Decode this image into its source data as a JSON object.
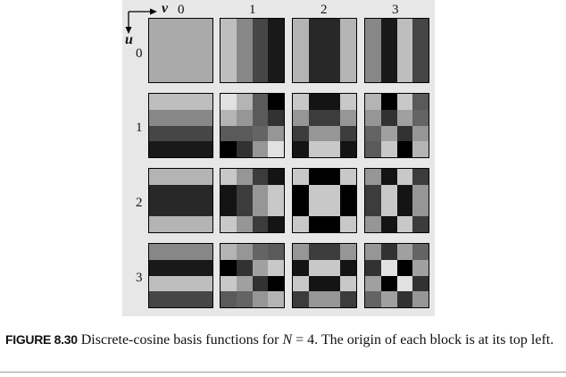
{
  "figure": {
    "axis_v": "v",
    "axis_u": "u",
    "col_labels": [
      "0",
      "1",
      "2",
      "3"
    ],
    "row_labels": [
      "0",
      "1",
      "2",
      "3"
    ],
    "blocks": [
      [
        {
          "cells": [
            [
              170,
              170,
              170,
              170
            ],
            [
              170,
              170,
              170,
              170
            ],
            [
              170,
              170,
              170,
              170
            ],
            [
              170,
              170,
              170,
              170
            ]
          ]
        },
        {
          "cells": [
            [
              190,
              135,
              70,
              25
            ],
            [
              190,
              135,
              70,
              25
            ],
            [
              190,
              135,
              70,
              25
            ],
            [
              190,
              135,
              70,
              25
            ]
          ]
        },
        {
          "cells": [
            [
              180,
              40,
              40,
              180
            ],
            [
              180,
              40,
              40,
              180
            ],
            [
              180,
              40,
              40,
              180
            ],
            [
              180,
              40,
              40,
              180
            ]
          ]
        },
        {
          "cells": [
            [
              135,
              25,
              190,
              70
            ],
            [
              135,
              25,
              190,
              70
            ],
            [
              135,
              25,
              190,
              70
            ],
            [
              135,
              25,
              190,
              70
            ]
          ]
        }
      ],
      [
        {
          "cells": [
            [
              190,
              190,
              190,
              190
            ],
            [
              135,
              135,
              135,
              135
            ],
            [
              70,
              70,
              70,
              70
            ],
            [
              25,
              25,
              25,
              25
            ]
          ]
        },
        {
          "cells": [
            [
              225,
              180,
              90,
              0
            ],
            [
              180,
              150,
              90,
              50
            ],
            [
              90,
              90,
              100,
              150
            ],
            [
              0,
              50,
              150,
              225
            ]
          ]
        },
        {
          "cells": [
            [
              200,
              20,
              20,
              200
            ],
            [
              150,
              60,
              60,
              150
            ],
            [
              60,
              150,
              150,
              60
            ],
            [
              20,
              200,
              200,
              20
            ]
          ]
        },
        {
          "cells": [
            [
              180,
              0,
              200,
              90
            ],
            [
              150,
              50,
              160,
              100
            ],
            [
              100,
              160,
              50,
              150
            ],
            [
              90,
              200,
              0,
              180
            ]
          ]
        }
      ],
      [
        {
          "cells": [
            [
              180,
              180,
              180,
              180
            ],
            [
              40,
              40,
              40,
              40
            ],
            [
              40,
              40,
              40,
              40
            ],
            [
              180,
              180,
              180,
              180
            ]
          ]
        },
        {
          "cells": [
            [
              200,
              150,
              60,
              20
            ],
            [
              20,
              60,
              150,
              200
            ],
            [
              20,
              60,
              150,
              200
            ],
            [
              200,
              150,
              60,
              20
            ]
          ]
        },
        {
          "cells": [
            [
              200,
              0,
              0,
              200
            ],
            [
              0,
              200,
              200,
              0
            ],
            [
              0,
              200,
              200,
              0
            ],
            [
              200,
              0,
              0,
              200
            ]
          ]
        },
        {
          "cells": [
            [
              150,
              20,
              200,
              60
            ],
            [
              60,
              200,
              20,
              150
            ],
            [
              60,
              200,
              20,
              150
            ],
            [
              150,
              20,
              200,
              60
            ]
          ]
        }
      ],
      [
        {
          "cells": [
            [
              135,
              135,
              135,
              135
            ],
            [
              25,
              25,
              25,
              25
            ],
            [
              190,
              190,
              190,
              190
            ],
            [
              70,
              70,
              70,
              70
            ]
          ]
        },
        {
          "cells": [
            [
              180,
              150,
              100,
              90
            ],
            [
              0,
              50,
              160,
              200
            ],
            [
              200,
              160,
              50,
              0
            ],
            [
              90,
              100,
              150,
              180
            ]
          ]
        },
        {
          "cells": [
            [
              150,
              60,
              60,
              150
            ],
            [
              20,
              200,
              200,
              20
            ],
            [
              200,
              20,
              20,
              200
            ],
            [
              60,
              150,
              150,
              60
            ]
          ]
        },
        {
          "cells": [
            [
              150,
              50,
              160,
              100
            ],
            [
              50,
              225,
              0,
              160
            ],
            [
              160,
              0,
              225,
              50
            ],
            [
              100,
              160,
              50,
              150
            ]
          ]
        }
      ]
    ]
  },
  "caption": {
    "label": "FIGURE 8.30",
    "text_before": " Discrete-cosine basis functions for ",
    "variable": "N",
    "text_after": " = 4. The origin of each block is at its top left."
  }
}
